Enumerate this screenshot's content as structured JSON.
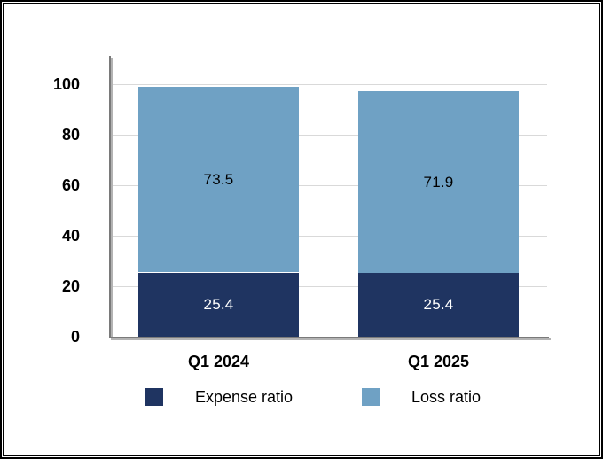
{
  "chart_data": {
    "type": "bar",
    "stacked": true,
    "title": "",
    "categories": [
      "Q1 2024",
      "Q1 2025"
    ],
    "series": [
      {
        "name": "Expense ratio",
        "values": [
          25.4,
          25.4
        ],
        "labels": [
          "25.4",
          "25.4"
        ],
        "color": "#1F3461",
        "label_color": "#FFFFFF"
      },
      {
        "name": "Loss ratio",
        "values": [
          73.5,
          71.9
        ],
        "labels": [
          "73.5",
          "71.9"
        ],
        "color": "#6FA1C4",
        "label_color": "#000000"
      }
    ],
    "y_ticks": [
      "0",
      "20",
      "40",
      "60",
      "80",
      "100"
    ],
    "ylim": [
      0,
      110
    ],
    "grid": true,
    "legend_position": "bottom"
  },
  "colors": {
    "expense_ratio": "#1F3461",
    "loss_ratio": "#6FA1C4",
    "gridline": "#D9D9D9",
    "axis": "#7A7A7A",
    "axis_shadow": "#B3B3B3",
    "text": "#000000",
    "frame": "#000000",
    "background": "#FFFFFF"
  }
}
